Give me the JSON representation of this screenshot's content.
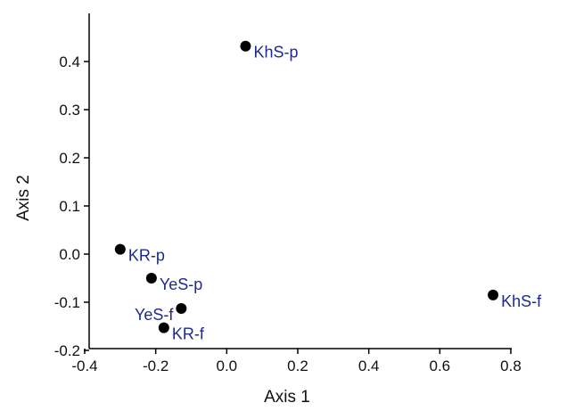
{
  "chart_data": {
    "type": "scatter",
    "xlabel": "Axis 1",
    "ylabel": "Axis 2",
    "xlim": [
      -0.4,
      0.8
    ],
    "ylim": [
      -0.2,
      0.5
    ],
    "xticks": [
      "-0.4",
      "-0.2",
      "0.0",
      "0.2",
      "0.4",
      "0.6",
      "0.8"
    ],
    "yticks": [
      "-0.2",
      "-0.1",
      "0.0",
      "0.1",
      "0.2",
      "0.3",
      "0.4"
    ],
    "grid": false,
    "point_color": "#000000",
    "label_color": "#1f2a8c",
    "points": [
      {
        "label": "KhS-p",
        "x": 0.053,
        "y": 0.432,
        "label_side": "right"
      },
      {
        "label": "KR-p",
        "x": -0.3,
        "y": 0.01,
        "label_side": "right"
      },
      {
        "label": "YeS-p",
        "x": -0.212,
        "y": -0.05,
        "label_side": "right"
      },
      {
        "label": "YeS-f",
        "x": -0.128,
        "y": -0.113,
        "label_side": "left"
      },
      {
        "label": "KR-f",
        "x": -0.177,
        "y": -0.153,
        "label_side": "right"
      },
      {
        "label": "KhS-f",
        "x": 0.75,
        "y": -0.085,
        "label_side": "right"
      }
    ]
  }
}
